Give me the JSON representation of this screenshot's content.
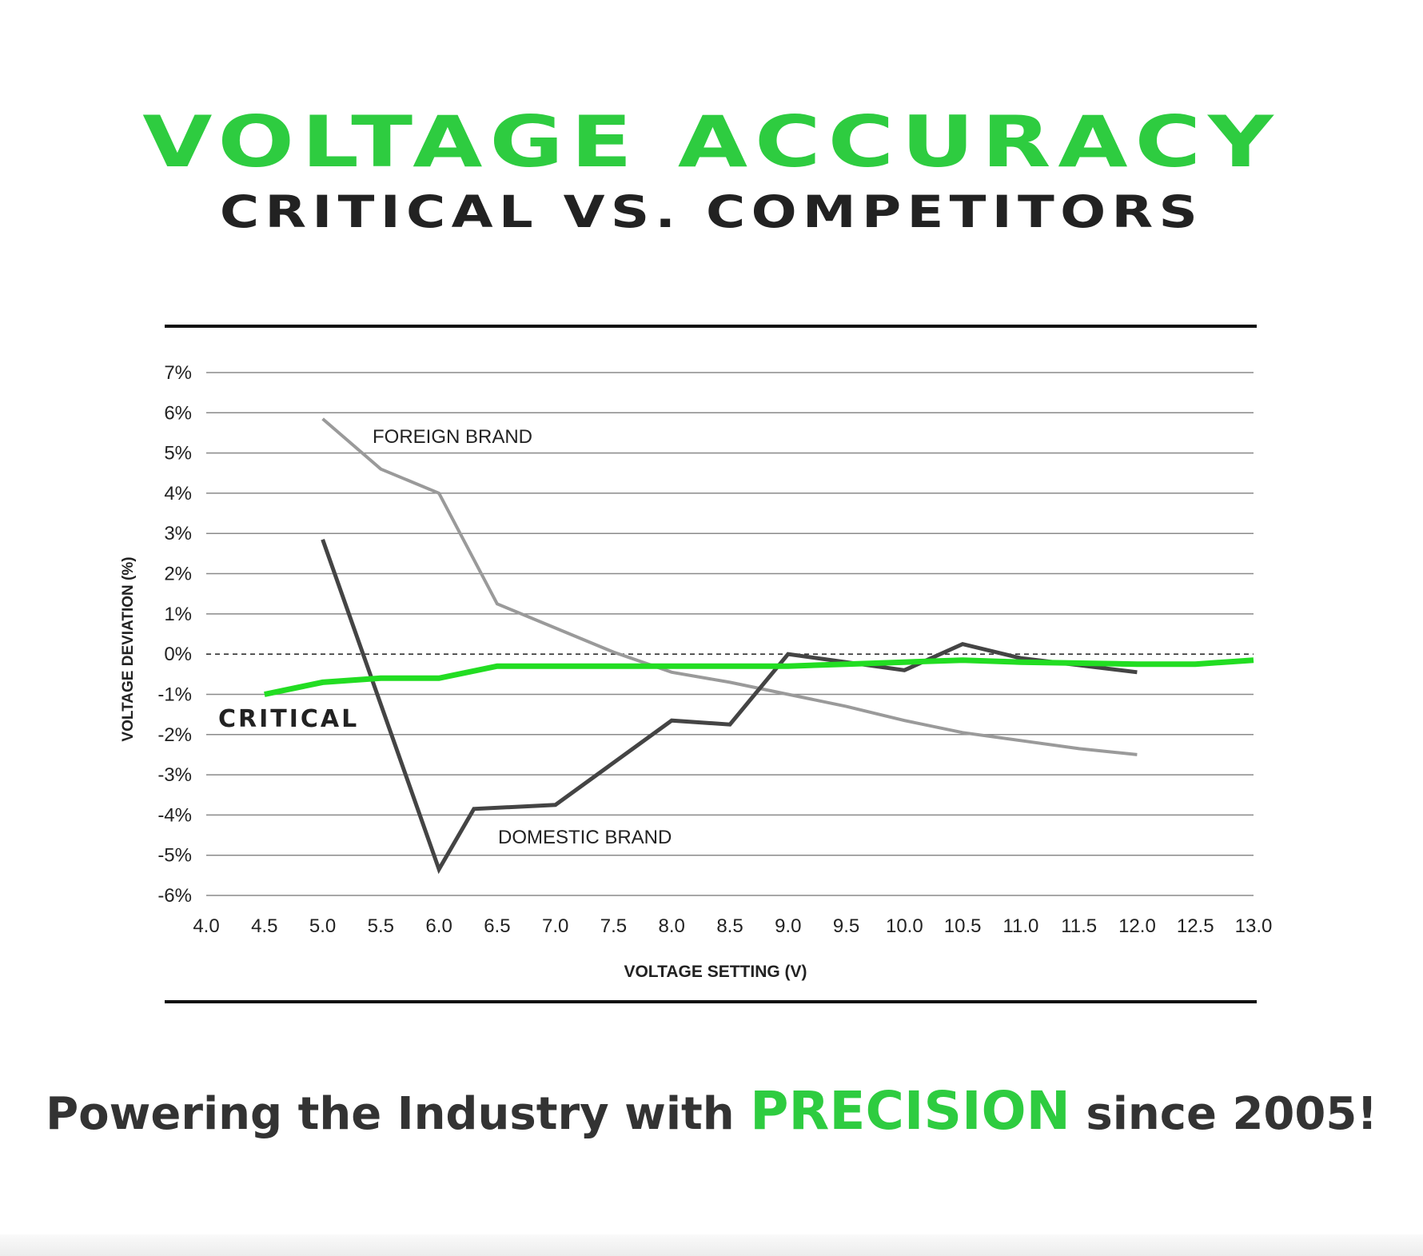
{
  "header": {
    "title": "VOLTAGE ACCURACY",
    "subtitle": "CRITICAL VS. COMPETITORS"
  },
  "tagline": {
    "before": "Powering the Industry with ",
    "highlight": "PRECISION",
    "after": " since 2005!"
  },
  "colors": {
    "accent_green": "#2ecc40",
    "critical_line": "#22dd22",
    "foreign_line": "#9a9a9a",
    "domestic_line": "#444444",
    "text_dark": "#222222",
    "tagline_text": "#333333"
  },
  "chart_data": {
    "type": "line",
    "xlabel": "VOLTAGE SETTING (V)",
    "ylabel": "VOLTAGE DEVIATION (%)",
    "xlim": [
      4.0,
      13.0
    ],
    "ylim": [
      -6,
      7
    ],
    "x_ticks": [
      "4.0",
      "4.5",
      "5.0",
      "5.5",
      "6.0",
      "6.5",
      "7.0",
      "7.5",
      "8.0",
      "8.5",
      "9.0",
      "9.5",
      "10.0",
      "10.5",
      "11.0",
      "11.5",
      "12.0",
      "12.5",
      "13.0"
    ],
    "y_ticks": [
      "7%",
      "6%",
      "5%",
      "4%",
      "3%",
      "2%",
      "1%",
      "0%",
      "-1%",
      "-2%",
      "-3%",
      "-4%",
      "-5%",
      "-6%"
    ],
    "grid": "horizontal",
    "zero_line": "dashed",
    "series": [
      {
        "name": "FOREIGN BRAND",
        "color": "#9a9a9a",
        "x": [
          5.0,
          5.5,
          6.0,
          6.5,
          7.0,
          7.5,
          8.0,
          8.5,
          9.0,
          9.5,
          10.0,
          10.5,
          11.0,
          11.5,
          12.0
        ],
        "y": [
          5.85,
          4.6,
          4.0,
          1.25,
          0.65,
          0.05,
          -0.45,
          -0.7,
          -1.0,
          -1.3,
          -1.65,
          -1.95,
          -2.15,
          -2.35,
          -2.5
        ]
      },
      {
        "name": "DOMESTIC BRAND",
        "color": "#444444",
        "x": [
          5.0,
          6.0,
          6.3,
          7.0,
          8.0,
          8.5,
          9.0,
          10.0,
          10.5,
          11.0,
          12.0
        ],
        "y": [
          2.85,
          -5.35,
          -3.85,
          -3.75,
          -1.65,
          -1.75,
          0.0,
          -0.4,
          0.25,
          -0.1,
          -0.45
        ]
      },
      {
        "name": "CRITICAL",
        "color": "#22dd22",
        "x": [
          4.5,
          5.0,
          5.5,
          6.0,
          6.5,
          7.0,
          8.0,
          9.0,
          9.5,
          10.0,
          10.5,
          11.0,
          12.0,
          12.5,
          13.0
        ],
        "y": [
          -1.0,
          -0.7,
          -0.6,
          -0.6,
          -0.3,
          -0.3,
          -0.3,
          -0.3,
          -0.25,
          -0.2,
          -0.15,
          -0.2,
          -0.25,
          -0.25,
          -0.15
        ]
      }
    ]
  }
}
